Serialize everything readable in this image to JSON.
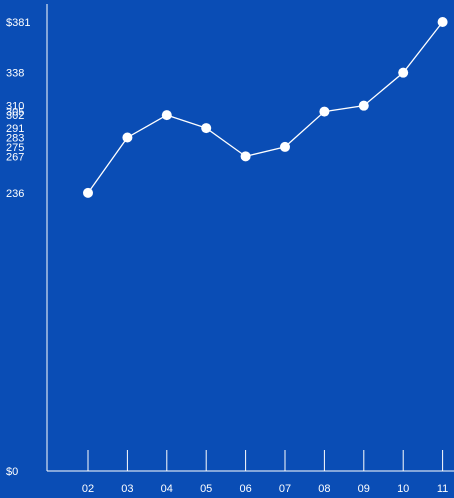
{
  "chart_data": {
    "type": "line",
    "x": [
      "02",
      "03",
      "04",
      "05",
      "06",
      "07",
      "08",
      "09",
      "10",
      "11"
    ],
    "series": [
      {
        "values": [
          236,
          283,
          302,
          291,
          267,
          275,
          305,
          310,
          338,
          381
        ]
      }
    ],
    "ylim": [
      0,
      381
    ],
    "y_tick_labels": [
      "$0",
      "236",
      "267",
      "275",
      "283",
      "291",
      "302",
      "305",
      "310",
      "338",
      "$381"
    ],
    "y_tick_values": [
      0,
      236,
      267,
      275,
      283,
      291,
      302,
      305,
      310,
      338,
      381
    ],
    "grid": false,
    "colors": {
      "background": "#0a4db5",
      "line": "#ffffff",
      "marker": "#ffffff",
      "text": "#ffffff"
    }
  }
}
